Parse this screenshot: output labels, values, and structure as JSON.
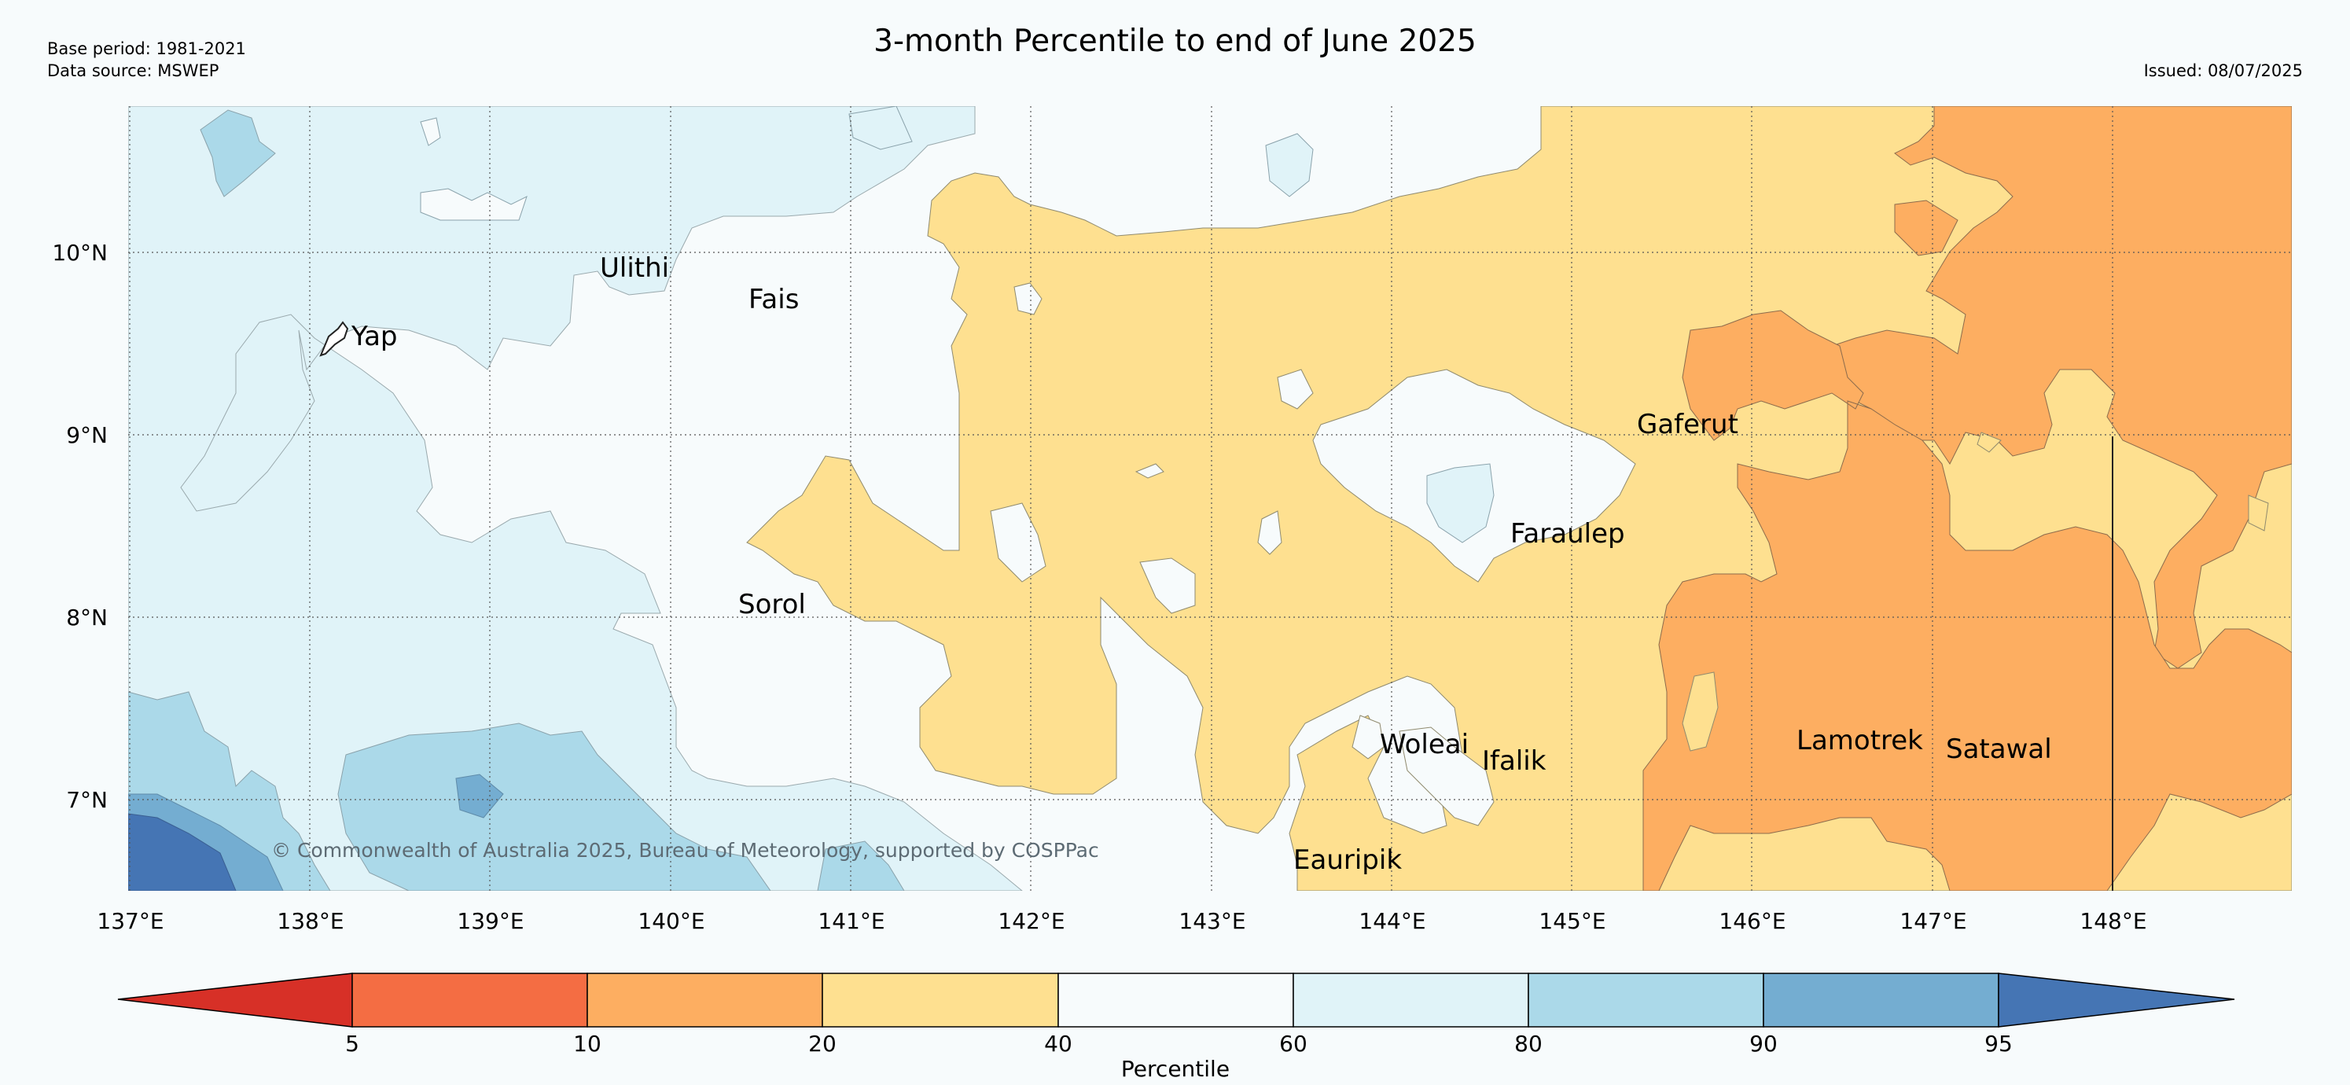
{
  "header": {
    "title": "3-month Percentile to end of June 2025",
    "base_period": "Base period: 1981-2021",
    "data_source": "Data source: MSWEP",
    "issued": "Issued: 08/07/2025"
  },
  "map": {
    "x_ticks": [
      "137°E",
      "138°E",
      "139°E",
      "140°E",
      "141°E",
      "142°E",
      "143°E",
      "144°E",
      "145°E",
      "146°E",
      "147°E",
      "148°E"
    ],
    "y_ticks": [
      "10°N",
      "9°N",
      "8°N",
      "7°N"
    ],
    "places": {
      "yap": "Yap",
      "ulithi": "Ulithi",
      "fais": "Fais",
      "sorol": "Sorol",
      "gaferut": "Gaferut",
      "faraulep": "Faraulep",
      "woleai": "Woleai",
      "ifalik": "Ifalik",
      "lamotrek": "Lamotrek",
      "satawal": "Satawal",
      "eauripik": "Eauripik"
    },
    "copyright": "© Commonwealth of Australia 2025, Bureau of Meteorology, supported by COSPPac"
  },
  "colorbar": {
    "label": "Percentile",
    "ticks": [
      "5",
      "10",
      "20",
      "40",
      "60",
      "80",
      "90",
      "95"
    ],
    "colors": {
      "below_5": "#d73027",
      "p5_10": "#f46d43",
      "p10_20": "#fdae61",
      "p20_40": "#fee090",
      "p40_60": "#f7fbfc",
      "p60_80": "#e0f3f8",
      "p80_90": "#abd9e9",
      "p90_95": "#74add1",
      "above_95": "#4575b4"
    }
  }
}
